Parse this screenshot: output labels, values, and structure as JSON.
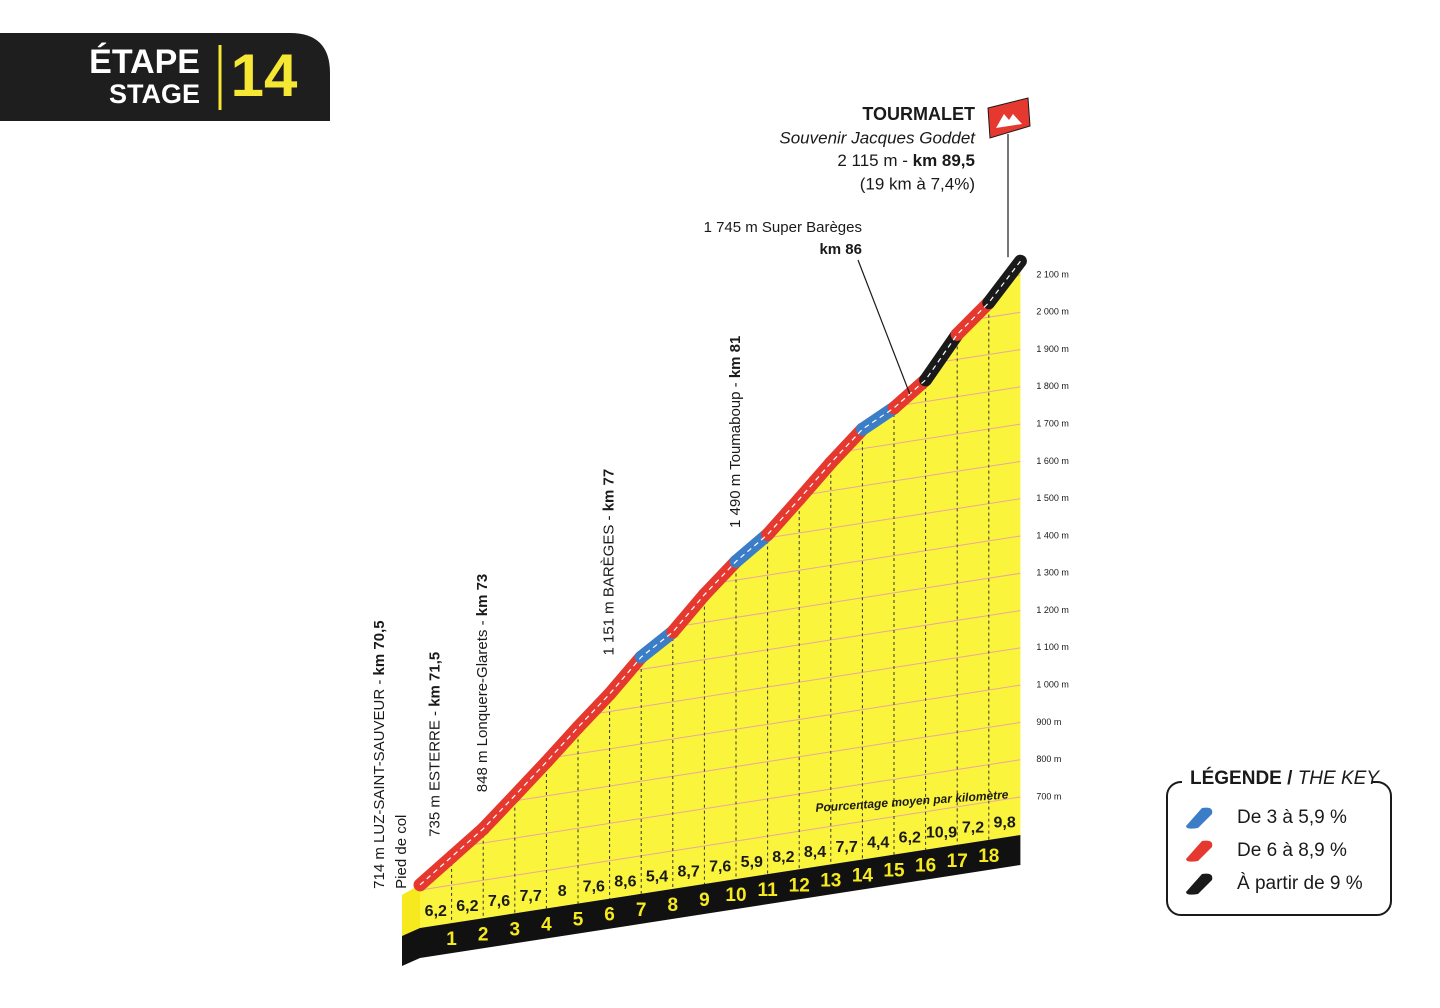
{
  "header": {
    "etape": "ÉTAPE",
    "stage": "STAGE",
    "number": "14"
  },
  "chart_data": {
    "type": "climb-profile",
    "subtitle": "Pourcentage moyen par kilomètre",
    "start_elevation": 714,
    "values": [
      6.2,
      6.2,
      7.6,
      7.7,
      8,
      7.6,
      8.6,
      5.4,
      8.7,
      7.6,
      5.9,
      8.2,
      8.4,
      7.7,
      4.4,
      6.2,
      10.9,
      7.2,
      9.8
    ],
    "value_labels": [
      "6,2",
      "6,2",
      "7,6",
      "7,7",
      "8",
      "7,6",
      "8,6",
      "5,4",
      "8,7",
      "7,6",
      "5,9",
      "8,2",
      "8,4",
      "7,7",
      "4,4",
      "6,2",
      "10,9",
      "7,2",
      "9,8"
    ],
    "km_marks": [
      1,
      2,
      3,
      4,
      5,
      6,
      7,
      8,
      9,
      10,
      11,
      12,
      13,
      14,
      15,
      16,
      17,
      18
    ],
    "ylim": [
      700,
      2100
    ],
    "yticks": [
      {
        "value": 700,
        "label": "700 m"
      },
      {
        "value": 800,
        "label": "800 m"
      },
      {
        "value": 900,
        "label": "900 m"
      },
      {
        "value": 1000,
        "label": "1 000 m"
      },
      {
        "value": 1100,
        "label": "1 100 m"
      },
      {
        "value": 1200,
        "label": "1 200 m"
      },
      {
        "value": 1300,
        "label": "1 300 m"
      },
      {
        "value": 1400,
        "label": "1 400 m"
      },
      {
        "value": 1500,
        "label": "1 500 m"
      },
      {
        "value": 1600,
        "label": "1 600 m"
      },
      {
        "value": 1700,
        "label": "1 700 m"
      },
      {
        "value": 1800,
        "label": "1 800 m"
      },
      {
        "value": 1900,
        "label": "1 900 m"
      },
      {
        "value": 2000,
        "label": "2 000 m"
      },
      {
        "value": 2100,
        "label": "2 100 m"
      }
    ],
    "waypoints": [
      {
        "name": "714 m LUZ-SAINT-SAUVEUR - ",
        "km_label": "km 70,5",
        "km": 70.5,
        "note": "Pied de col"
      },
      {
        "name": "735 m ESTERRE - ",
        "km_label": "km 71,5",
        "km": 71.5
      },
      {
        "name": "848 m Lonquere-Glarets - ",
        "km_label": "km 73",
        "km": 73
      },
      {
        "name": "1 151 m BARÈGES - ",
        "km_label": "km 77",
        "km": 77
      },
      {
        "name": "1 490 m Toumaboup - ",
        "km_label": "km 81",
        "km": 81
      },
      {
        "name": "1 745 m Super Barèges",
        "km_label": "km 86",
        "km": 86,
        "horizontal": true
      }
    ],
    "summit": {
      "name": "TOURMALET",
      "subtitle": "Souvenir Jacques Goddet",
      "elevation_label": "2 115 m - ",
      "km_label": "km 89,5",
      "km": 89.5,
      "summary": "(19 km à 7,4%)"
    },
    "legend": {
      "title": "LÉGENDE / ",
      "title_en": "THE KEY",
      "entries": [
        {
          "label": "De 3 à 5,9 %",
          "from": 3,
          "color": "#3b7dc6"
        },
        {
          "label": "De 6 à 8,9 %",
          "from": 6,
          "color": "#e5392f"
        },
        {
          "label": "À partir de 9 %",
          "from": 9,
          "color": "#1a1a1a"
        }
      ]
    }
  }
}
